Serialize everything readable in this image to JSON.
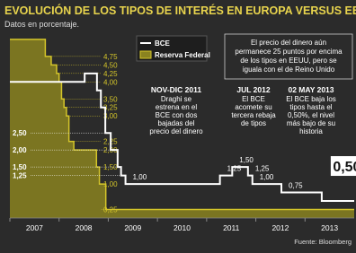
{
  "chart_data": {
    "type": "line",
    "title": "EVOLUCIÓN DE LOS TIPOS DE INTERÉS EN EUROPA VERSUS EEUU",
    "subtitle": "Datos en porcentaje.",
    "source": "Fuente: Bloomberg",
    "xlim": [
      2007,
      2014
    ],
    "xticks": [
      2007,
      2008,
      2009,
      2010,
      2011,
      2012,
      2013
    ],
    "ylim": [
      0,
      5.3
    ],
    "legend": "top-left",
    "series": [
      {
        "name": "BCE",
        "color": "#ffffff",
        "x": [
          2007,
          2008.52,
          2008.77,
          2008.85,
          2008.94,
          2009.05,
          2009.19,
          2009.26,
          2009.35,
          2011.27,
          2011.52,
          2011.84,
          2011.93,
          2012.52,
          2013.34
        ],
        "values": [
          4.0,
          4.25,
          3.75,
          3.25,
          2.5,
          2.0,
          1.5,
          1.25,
          1.0,
          1.25,
          1.5,
          1.25,
          1.0,
          0.75,
          0.5
        ],
        "value_labels": [
          null,
          null,
          null,
          null,
          "2,50",
          "2,00",
          "1,50",
          "1,25",
          "1,00",
          "1,25",
          "1,50",
          "1,25",
          "1,00",
          "0,75",
          "0,50"
        ]
      },
      {
        "name": "Reserva Federal",
        "color": "#d4c52a",
        "x": [
          2007,
          2007.72,
          2007.84,
          2007.95,
          2008.0,
          2008.05,
          2008.1,
          2008.15,
          2008.2,
          2008.3,
          2008.76,
          2008.82,
          2008.95
        ],
        "values": [
          5.25,
          4.75,
          4.5,
          4.25,
          4.0,
          3.5,
          3.25,
          3.0,
          2.25,
          2.0,
          1.5,
          1.0,
          0.25
        ],
        "value_labels": [
          null,
          "4,75",
          "4,50",
          "4,25",
          "4,00",
          "3,50",
          "3,25",
          "3,00",
          "2,25",
          "2,00",
          "1,50",
          "1,00",
          "0,25"
        ]
      }
    ],
    "annotations": [
      {
        "title": "NOV-DIC 2011",
        "lines": [
          "Draghi se",
          "estrena en el",
          "BCE con dos",
          "bajadas del",
          "precio del dinero"
        ]
      },
      {
        "title": "JUL 2012",
        "lines": [
          "El BCE",
          "acomete su",
          "tercera rebaja",
          "de tipos"
        ]
      },
      {
        "title": "02 MAY 2013",
        "lines": [
          "El BCE baja los",
          "tipos hasta el",
          "0,50%, el nivel",
          "más bajo de su",
          "historia"
        ]
      }
    ],
    "note": [
      "El precio del dinero aún",
      "permanece 25 puntos por encima",
      "de los tipos en EEUU, pero se",
      "iguala con el de Reino Unido"
    ]
  }
}
